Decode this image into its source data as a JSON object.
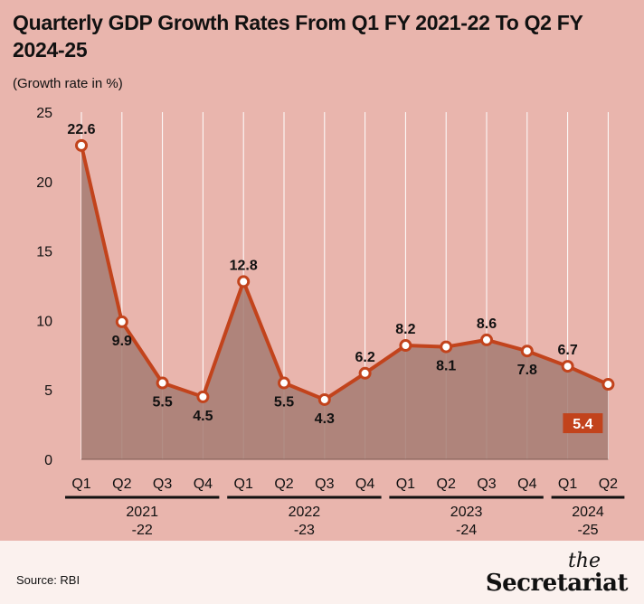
{
  "chart_data": {
    "type": "area",
    "title": "Quarterly GDP Growth Rates From Q1 FY 2021-22 To Q2 FY 2024-25",
    "subtitle": "(Growth rate in %)",
    "categories": [
      "Q1",
      "Q2",
      "Q3",
      "Q4",
      "Q1",
      "Q2",
      "Q3",
      "Q4",
      "Q1",
      "Q2",
      "Q3",
      "Q4",
      "Q1",
      "Q2"
    ],
    "values": [
      22.6,
      9.9,
      5.5,
      4.5,
      12.8,
      5.5,
      4.3,
      6.2,
      8.2,
      8.1,
      8.6,
      7.8,
      6.7,
      5.4
    ],
    "label_positions": [
      "above",
      "below",
      "below",
      "below",
      "above",
      "below",
      "below",
      "above",
      "above",
      "below",
      "above",
      "below",
      "above",
      "highlight"
    ],
    "year_groups": [
      {
        "label_line1": "2021",
        "label_line2": "-22",
        "start": 0,
        "end": 3
      },
      {
        "label_line1": "2022",
        "label_line2": "-23",
        "start": 4,
        "end": 7
      },
      {
        "label_line1": "2023",
        "label_line2": "-24",
        "start": 8,
        "end": 11
      },
      {
        "label_line1": "2024",
        "label_line2": "-25",
        "start": 12,
        "end": 13
      }
    ],
    "ylim": [
      0,
      25
    ],
    "yticks": [
      0,
      5,
      10,
      15,
      20,
      25
    ],
    "grid": "vertical",
    "colors": {
      "background": "#e9b5ad",
      "line": "#c2431c",
      "area": "#a57b72",
      "grid": "#ffffff",
      "highlight_bg": "#c2431c",
      "highlight_text": "#ffffff"
    }
  },
  "footer": {
    "source": "Source: RBI",
    "logo_the": "the",
    "logo_name": "Secretariat"
  }
}
